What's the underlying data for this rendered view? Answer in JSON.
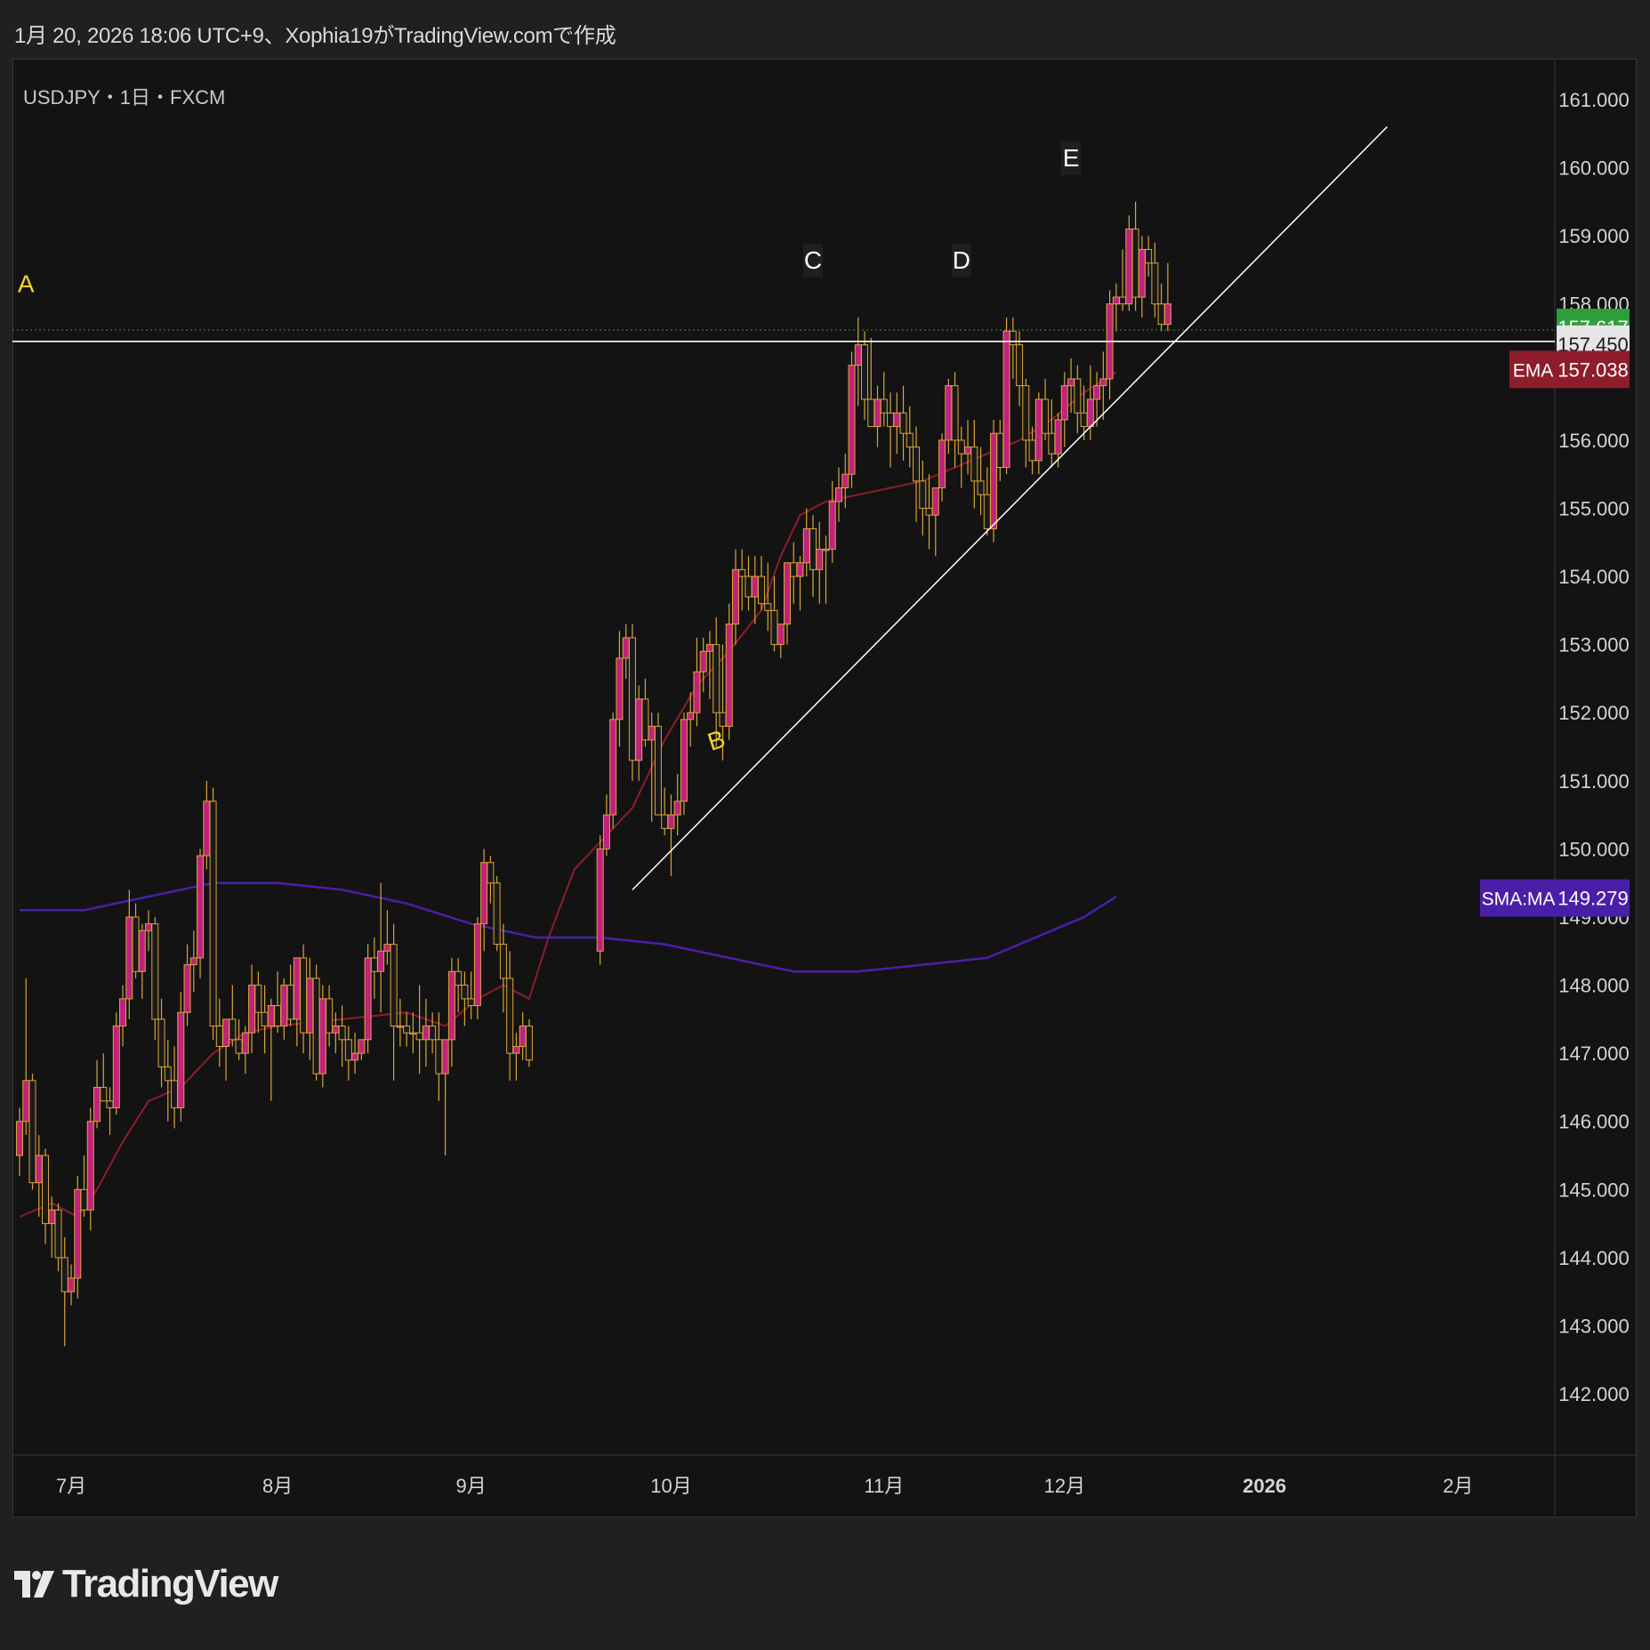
{
  "header": {
    "caption": "1月 20, 2026 18:06 UTC+9、Xophia19がTradingView.comで作成",
    "symbol": "USDJPY・1日・FXCM"
  },
  "brand": {
    "name": "TradingView"
  },
  "colors": {
    "background": "#131313",
    "bull_candle": "#c2227c",
    "bear_candle": "#1a1a1a",
    "wick": "#d9a53a",
    "ema": "#8e1d2b",
    "sma": "#4a1fa8",
    "horizontal_line": "#ffffff",
    "current_price": "#2e9e3a",
    "label_yellow": "#f2d22e"
  },
  "chart_data": {
    "type": "candlestick",
    "title": "USDJPY・1日・FXCM",
    "ylim": [
      141.1,
      161.6
    ],
    "y_ticks": [
      "142.000",
      "143.000",
      "144.000",
      "145.000",
      "146.000",
      "147.000",
      "148.000",
      "149.000",
      "150.000",
      "151.000",
      "152.000",
      "153.000",
      "154.000",
      "155.000",
      "156.000",
      "157.000",
      "158.000",
      "159.000",
      "160.000",
      "161.000"
    ],
    "x_ticks": [
      "7月",
      "8月",
      "9月",
      "10月",
      "11月",
      "12月",
      "2026",
      "2月"
    ],
    "x_tick_days": [
      8,
      40,
      70,
      101,
      134,
      162,
      193,
      223
    ],
    "last_day": 212,
    "candles_ohlc": [
      [
        145.5,
        146.2,
        145.2,
        146.0
      ],
      [
        146.0,
        148.1,
        145.8,
        146.6
      ],
      [
        146.6,
        146.7,
        145.0,
        145.1
      ],
      [
        145.1,
        145.8,
        144.6,
        145.5
      ],
      [
        145.5,
        145.6,
        144.2,
        144.5
      ],
      [
        144.5,
        144.9,
        144.0,
        144.7
      ],
      [
        144.7,
        144.8,
        143.8,
        144.0
      ],
      [
        144.0,
        144.3,
        142.7,
        143.5
      ],
      [
        143.5,
        143.9,
        143.3,
        143.7
      ],
      [
        143.7,
        145.2,
        143.4,
        145.0
      ],
      [
        145.0,
        145.5,
        144.6,
        144.7
      ],
      [
        144.7,
        146.2,
        144.4,
        146.0
      ],
      [
        146.0,
        146.9,
        145.9,
        146.5
      ],
      [
        146.5,
        147.0,
        146.3,
        146.3
      ],
      [
        146.3,
        146.5,
        145.8,
        146.2
      ],
      [
        146.2,
        147.6,
        146.1,
        147.4
      ],
      [
        147.4,
        148.0,
        147.1,
        147.8
      ],
      [
        147.8,
        149.4,
        147.5,
        149.0
      ],
      [
        149.0,
        149.2,
        148.1,
        148.2
      ],
      [
        148.2,
        148.9,
        147.8,
        148.8
      ],
      [
        148.8,
        149.1,
        148.5,
        148.9
      ],
      [
        148.9,
        149.0,
        147.2,
        147.5
      ],
      [
        147.5,
        147.8,
        146.5,
        146.8
      ],
      [
        146.8,
        147.2,
        146.0,
        146.6
      ],
      [
        146.6,
        147.1,
        145.9,
        146.2
      ],
      [
        146.2,
        147.9,
        146.0,
        147.6
      ],
      [
        147.6,
        148.6,
        147.4,
        148.3
      ],
      [
        148.3,
        148.8,
        147.9,
        148.4
      ],
      [
        148.4,
        150.0,
        148.1,
        149.9
      ],
      [
        149.9,
        151.0,
        149.7,
        150.7
      ],
      [
        150.7,
        150.9,
        147.2,
        147.4
      ],
      [
        147.4,
        147.8,
        146.8,
        147.1
      ],
      [
        147.1,
        147.5,
        146.6,
        147.5
      ],
      [
        147.5,
        148.0,
        147.1,
        147.2
      ],
      [
        147.2,
        147.5,
        146.9,
        147.0
      ],
      [
        147.0,
        147.4,
        146.7,
        147.3
      ],
      [
        147.3,
        148.3,
        147.0,
        148.0
      ],
      [
        148.0,
        148.2,
        147.3,
        147.6
      ],
      [
        147.6,
        148.0,
        147.0,
        147.4
      ],
      [
        147.4,
        147.8,
        146.3,
        147.7
      ],
      [
        147.7,
        148.2,
        147.3,
        147.4
      ],
      [
        147.4,
        148.1,
        147.2,
        148.0
      ],
      [
        148.0,
        148.3,
        147.4,
        147.5
      ],
      [
        147.5,
        148.4,
        147.1,
        148.4
      ],
      [
        148.4,
        148.6,
        147.0,
        147.3
      ],
      [
        147.3,
        148.4,
        146.9,
        148.1
      ],
      [
        148.1,
        148.3,
        146.6,
        146.7
      ],
      [
        146.7,
        148.0,
        146.5,
        147.8
      ],
      [
        147.8,
        148.0,
        147.1,
        147.3
      ],
      [
        147.3,
        147.6,
        147.0,
        147.4
      ],
      [
        147.4,
        147.7,
        146.8,
        147.2
      ],
      [
        147.2,
        147.4,
        146.6,
        146.9
      ],
      [
        146.9,
        147.3,
        146.7,
        147.0
      ],
      [
        147.0,
        147.2,
        146.9,
        147.2
      ],
      [
        147.2,
        148.6,
        147.0,
        148.4
      ],
      [
        148.4,
        148.7,
        147.8,
        148.2
      ],
      [
        148.2,
        149.5,
        147.6,
        148.5
      ],
      [
        148.5,
        149.1,
        148.3,
        148.6
      ],
      [
        148.6,
        148.9,
        146.6,
        147.4
      ],
      [
        147.4,
        147.8,
        147.1,
        147.4
      ],
      [
        147.4,
        147.6,
        147.1,
        147.3
      ],
      [
        147.3,
        147.6,
        147.0,
        147.3
      ],
      [
        147.3,
        148.0,
        146.7,
        147.2
      ],
      [
        147.2,
        147.8,
        146.8,
        147.4
      ],
      [
        147.4,
        147.6,
        147.0,
        147.2
      ],
      [
        147.2,
        147.6,
        146.3,
        146.7
      ],
      [
        146.7,
        147.2,
        145.5,
        147.2
      ],
      [
        147.2,
        148.4,
        146.8,
        148.2
      ],
      [
        148.2,
        148.4,
        147.6,
        148.0
      ],
      [
        148.0,
        148.2,
        147.4,
        147.8
      ],
      [
        147.8,
        148.2,
        147.5,
        147.7
      ],
      [
        147.7,
        149.0,
        147.5,
        148.9
      ],
      [
        148.9,
        150.0,
        148.5,
        149.8
      ],
      [
        149.8,
        149.9,
        149.2,
        149.5
      ],
      [
        149.5,
        149.6,
        148.5,
        148.6
      ],
      [
        148.6,
        148.9,
        147.6,
        148.1
      ],
      [
        148.1,
        148.5,
        146.6,
        147.0
      ],
      [
        147.0,
        147.3,
        146.6,
        147.1
      ],
      [
        147.1,
        147.6,
        146.9,
        147.4
      ],
      [
        147.4,
        147.5,
        146.8,
        146.9
      ],
      [
        148.5,
        150.2,
        148.3,
        150.0
      ],
      [
        150.0,
        150.8,
        149.9,
        150.5
      ],
      [
        150.5,
        152.0,
        150.3,
        151.9
      ],
      [
        151.9,
        153.2,
        151.5,
        152.8
      ],
      [
        152.8,
        153.3,
        152.5,
        153.1
      ],
      [
        153.1,
        153.3,
        151.0,
        151.3
      ],
      [
        151.3,
        152.4,
        151.0,
        152.2
      ],
      [
        152.2,
        152.5,
        151.5,
        151.6
      ],
      [
        151.6,
        152.0,
        150.4,
        151.8
      ],
      [
        151.8,
        152.0,
        150.8,
        150.5
      ],
      [
        150.5,
        150.9,
        150.2,
        150.3
      ],
      [
        150.3,
        150.8,
        149.6,
        150.5
      ],
      [
        150.5,
        151.1,
        150.2,
        150.7
      ],
      [
        150.7,
        152.0,
        150.5,
        151.9
      ],
      [
        151.9,
        152.3,
        151.5,
        152.0
      ],
      [
        152.0,
        153.1,
        151.8,
        152.6
      ],
      [
        152.6,
        153.1,
        152.3,
        152.9
      ],
      [
        152.9,
        153.2,
        152.2,
        153.0
      ],
      [
        153.0,
        153.4,
        151.5,
        152.0
      ],
      [
        152.0,
        153.0,
        151.3,
        151.8
      ],
      [
        151.8,
        153.6,
        151.6,
        153.3
      ],
      [
        153.3,
        154.4,
        153.0,
        154.1
      ],
      [
        154.1,
        154.4,
        153.5,
        154.0
      ],
      [
        154.0,
        154.3,
        153.5,
        153.7
      ],
      [
        153.7,
        154.3,
        153.3,
        154.0
      ],
      [
        154.0,
        154.3,
        153.5,
        153.6
      ],
      [
        153.6,
        154.2,
        153.2,
        153.5
      ],
      [
        153.5,
        154.0,
        152.9,
        153.0
      ],
      [
        153.0,
        153.2,
        152.8,
        153.3
      ],
      [
        153.3,
        153.8,
        153.0,
        154.2
      ],
      [
        154.2,
        154.5,
        153.6,
        154.0
      ],
      [
        154.0,
        154.3,
        153.5,
        154.2
      ],
      [
        154.2,
        155.0,
        154.0,
        154.7
      ],
      [
        154.7,
        154.9,
        153.7,
        154.1
      ],
      [
        154.1,
        154.8,
        153.6,
        154.4
      ],
      [
        154.4,
        154.6,
        153.6,
        154.4
      ],
      [
        154.4,
        155.4,
        154.2,
        155.1
      ],
      [
        155.1,
        155.6,
        154.8,
        155.3
      ],
      [
        155.3,
        155.8,
        155.0,
        155.5
      ],
      [
        155.5,
        157.3,
        155.3,
        157.1
      ],
      [
        157.1,
        157.8,
        156.5,
        157.4
      ],
      [
        157.4,
        157.6,
        156.3,
        156.6
      ],
      [
        156.6,
        157.5,
        156.2,
        156.2
      ],
      [
        156.2,
        156.8,
        155.9,
        156.6
      ],
      [
        156.6,
        157.0,
        156.2,
        156.4
      ],
      [
        156.4,
        156.7,
        155.6,
        156.2
      ],
      [
        156.2,
        156.7,
        155.8,
        156.4
      ],
      [
        156.4,
        156.8,
        155.7,
        156.1
      ],
      [
        156.1,
        156.5,
        155.6,
        155.9
      ],
      [
        155.9,
        156.2,
        154.8,
        155.4
      ],
      [
        155.4,
        155.7,
        154.6,
        155.0
      ],
      [
        155.0,
        155.5,
        154.4,
        154.9
      ],
      [
        154.9,
        155.3,
        154.3,
        155.3
      ],
      [
        155.3,
        156.1,
        155.1,
        156.0
      ],
      [
        156.0,
        156.9,
        155.8,
        156.8
      ],
      [
        156.8,
        157.0,
        155.6,
        156.0
      ],
      [
        156.0,
        156.2,
        155.3,
        155.8
      ],
      [
        155.8,
        156.3,
        155.5,
        155.9
      ],
      [
        155.9,
        156.3,
        155.0,
        155.4
      ],
      [
        155.4,
        155.9,
        154.9,
        155.2
      ],
      [
        155.2,
        155.6,
        154.6,
        154.7
      ],
      [
        154.7,
        156.3,
        154.5,
        156.1
      ],
      [
        156.1,
        156.3,
        155.4,
        155.6
      ],
      [
        155.6,
        157.8,
        155.5,
        157.6
      ],
      [
        157.6,
        157.8,
        156.9,
        157.4
      ],
      [
        157.4,
        157.6,
        156.5,
        156.8
      ],
      [
        156.8,
        156.9,
        155.6,
        156.0
      ],
      [
        156.0,
        156.2,
        155.5,
        155.7
      ],
      [
        155.7,
        156.7,
        155.5,
        156.6
      ],
      [
        156.6,
        156.9,
        156.0,
        156.1
      ],
      [
        156.1,
        156.6,
        155.6,
        155.8
      ],
      [
        155.8,
        156.4,
        155.6,
        156.3
      ],
      [
        156.3,
        157.0,
        155.9,
        156.8
      ],
      [
        156.8,
        157.2,
        156.4,
        156.9
      ],
      [
        156.9,
        157.1,
        156.1,
        156.4
      ],
      [
        156.4,
        156.8,
        156.0,
        156.2
      ],
      [
        156.2,
        157.1,
        156.0,
        156.6
      ],
      [
        156.6,
        157.0,
        156.2,
        156.8
      ],
      [
        156.8,
        157.3,
        156.3,
        156.9
      ],
      [
        156.9,
        158.2,
        156.6,
        158.0
      ],
      [
        158.0,
        158.3,
        157.6,
        158.1
      ],
      [
        158.1,
        158.8,
        157.9,
        158.0
      ],
      [
        158.0,
        159.3,
        157.9,
        159.1
      ],
      [
        159.1,
        159.5,
        157.9,
        158.1
      ],
      [
        158.1,
        159.0,
        157.8,
        158.8
      ],
      [
        158.8,
        159.0,
        158.4,
        158.6
      ],
      [
        158.6,
        158.9,
        157.8,
        158.0
      ],
      [
        158.0,
        158.3,
        157.6,
        157.7
      ],
      [
        157.7,
        158.6,
        157.6,
        158.0
      ]
    ],
    "candle_start_days": [
      0,
      90
    ],
    "indicators": [
      {
        "name": "EMA",
        "last_value": 157.038,
        "points": [
          [
            0,
            144.6
          ],
          [
            5,
            144.8
          ],
          [
            9,
            144.6
          ],
          [
            12,
            145.0
          ],
          [
            16,
            145.7
          ],
          [
            20,
            146.3
          ],
          [
            25,
            146.5
          ],
          [
            30,
            147.0
          ],
          [
            35,
            147.3
          ],
          [
            40,
            147.4
          ],
          [
            50,
            147.5
          ],
          [
            60,
            147.6
          ],
          [
            66,
            147.4
          ],
          [
            71,
            147.8
          ],
          [
            75,
            148.0
          ],
          [
            79,
            147.8
          ],
          [
            82,
            148.7
          ],
          [
            86,
            149.7
          ],
          [
            90,
            150.1
          ],
          [
            95,
            150.6
          ],
          [
            100,
            151.6
          ],
          [
            105,
            152.4
          ],
          [
            110,
            152.9
          ],
          [
            115,
            153.5
          ],
          [
            118,
            154.3
          ],
          [
            121,
            154.9
          ],
          [
            125,
            155.1
          ],
          [
            130,
            155.2
          ],
          [
            135,
            155.3
          ],
          [
            140,
            155.4
          ],
          [
            145,
            155.6
          ],
          [
            150,
            155.8
          ],
          [
            155,
            156.0
          ],
          [
            160,
            156.3
          ],
          [
            165,
            156.7
          ],
          [
            170,
            157.0
          ]
        ]
      },
      {
        "name": "SMA:MA",
        "last_value": 149.279,
        "points": [
          [
            0,
            149.1
          ],
          [
            10,
            149.1
          ],
          [
            20,
            149.3
          ],
          [
            30,
            149.5
          ],
          [
            40,
            149.5
          ],
          [
            50,
            149.4
          ],
          [
            60,
            149.2
          ],
          [
            70,
            148.9
          ],
          [
            80,
            148.7
          ],
          [
            90,
            148.7
          ],
          [
            100,
            148.6
          ],
          [
            110,
            148.4
          ],
          [
            120,
            148.2
          ],
          [
            130,
            148.2
          ],
          [
            140,
            148.3
          ],
          [
            150,
            148.4
          ],
          [
            160,
            148.8
          ],
          [
            165,
            149.0
          ],
          [
            170,
            149.3
          ]
        ]
      }
    ],
    "price_labels": [
      {
        "name": "",
        "value": "157.617",
        "y": 157.617
      },
      {
        "name": "",
        "value": "157.450",
        "y": 157.45
      },
      {
        "name": "EMA",
        "value": "157.038",
        "y": 157.038
      },
      {
        "name": "SMA:MA",
        "value": "149.279",
        "y": 149.279
      }
    ],
    "horizontal_line": 157.45,
    "dotted_line": 157.617,
    "trend_line": [
      [
        95,
        149.4
      ],
      [
        212,
        160.6
      ]
    ],
    "annotations": [
      {
        "text": "A",
        "x": 1,
        "y": 158.3,
        "color": "yellow"
      },
      {
        "text": "B",
        "x": 108,
        "y": 151.6,
        "color": "yellow"
      },
      {
        "text": "C",
        "x": 123,
        "y": 158.6,
        "color": "box"
      },
      {
        "text": "D",
        "x": 146,
        "y": 158.6,
        "color": "box"
      },
      {
        "text": "E",
        "x": 163,
        "y": 160.1,
        "color": "box"
      }
    ]
  }
}
